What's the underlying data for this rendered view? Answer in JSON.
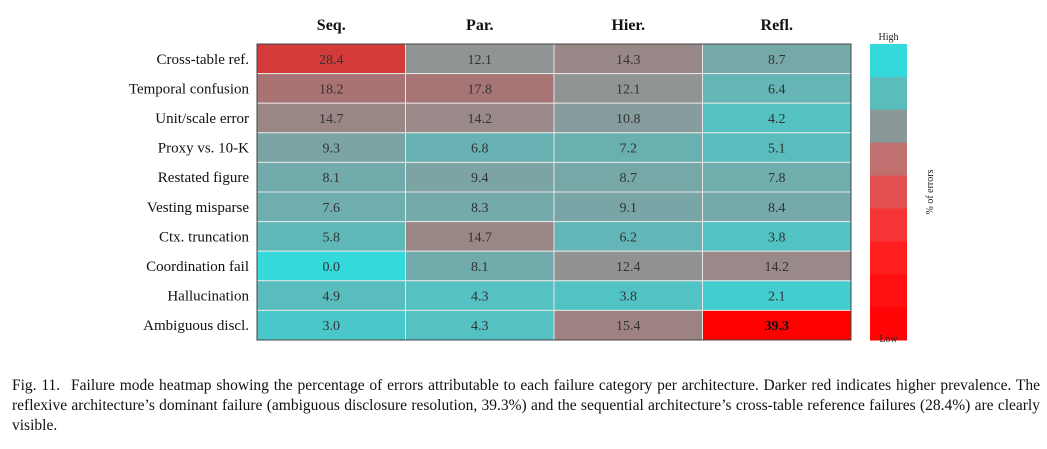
{
  "chart_data": {
    "type": "heatmap",
    "columns": [
      "Seq.",
      "Par.",
      "Hier.",
      "Refl."
    ],
    "rows": [
      "Cross-table ref.",
      "Temporal confusion",
      "Unit/scale error",
      "Proxy vs. 10-K",
      "Restated figure",
      "Vesting misparse",
      "Ctx. truncation",
      "Coordination fail",
      "Hallucination",
      "Ambiguous discl."
    ],
    "values": [
      [
        28.4,
        12.1,
        14.3,
        8.7
      ],
      [
        18.2,
        17.8,
        12.1,
        6.4
      ],
      [
        14.7,
        14.2,
        10.8,
        4.2
      ],
      [
        9.3,
        6.8,
        7.2,
        5.1
      ],
      [
        8.1,
        9.4,
        8.7,
        7.8
      ],
      [
        7.6,
        8.3,
        9.1,
        8.4
      ],
      [
        5.8,
        14.7,
        6.2,
        3.8
      ],
      [
        0.0,
        8.1,
        12.4,
        14.2
      ],
      [
        4.9,
        4.3,
        3.8,
        2.1
      ],
      [
        3.0,
        4.3,
        15.4,
        39.3
      ]
    ],
    "value_labels": [
      [
        "28.4",
        "12.1",
        "14.3",
        "8.7"
      ],
      [
        "18.2",
        "17.8",
        "12.1",
        "6.4"
      ],
      [
        "14.7",
        "14.2",
        "10.8",
        "4.2"
      ],
      [
        "9.3",
        "6.8",
        "7.2",
        "5.1"
      ],
      [
        "8.1",
        "9.4",
        "8.7",
        "7.8"
      ],
      [
        "7.6",
        "8.3",
        "9.1",
        "8.4"
      ],
      [
        "5.8",
        "14.7",
        "6.2",
        "3.8"
      ],
      [
        "0.0",
        "8.1",
        "12.4",
        "14.2"
      ],
      [
        "4.9",
        "4.3",
        "3.8",
        "2.1"
      ],
      [
        "3.0",
        "4.3",
        "15.4",
        "39.3"
      ]
    ],
    "highlighted": [
      [
        9,
        3
      ]
    ],
    "colorbar": {
      "top_label": "High",
      "bottom_label": "Low",
      "axis_label": "% of errors",
      "colors": [
        "#33d9db",
        "#5bbcbc",
        "#8a9898",
        "#c17070",
        "#e35050",
        "#f53535",
        "#ff1f1f",
        "#ff0f0f",
        "#ff0505"
      ]
    },
    "colormap": {
      "low": "#33d9db",
      "mid": "#8f9696",
      "high": "#ff0000"
    }
  },
  "caption": {
    "lead": "Fig. 11.",
    "text": "Failure mode heatmap showing the percentage of errors attributable to each failure category per architecture. Darker red indicates higher prevalence. The reflexive architecture’s dominant failure (ambiguous disclosure resolution, 39.3%) and the sequential architecture’s cross-table reference failures (28.4%) are clearly visible."
  }
}
